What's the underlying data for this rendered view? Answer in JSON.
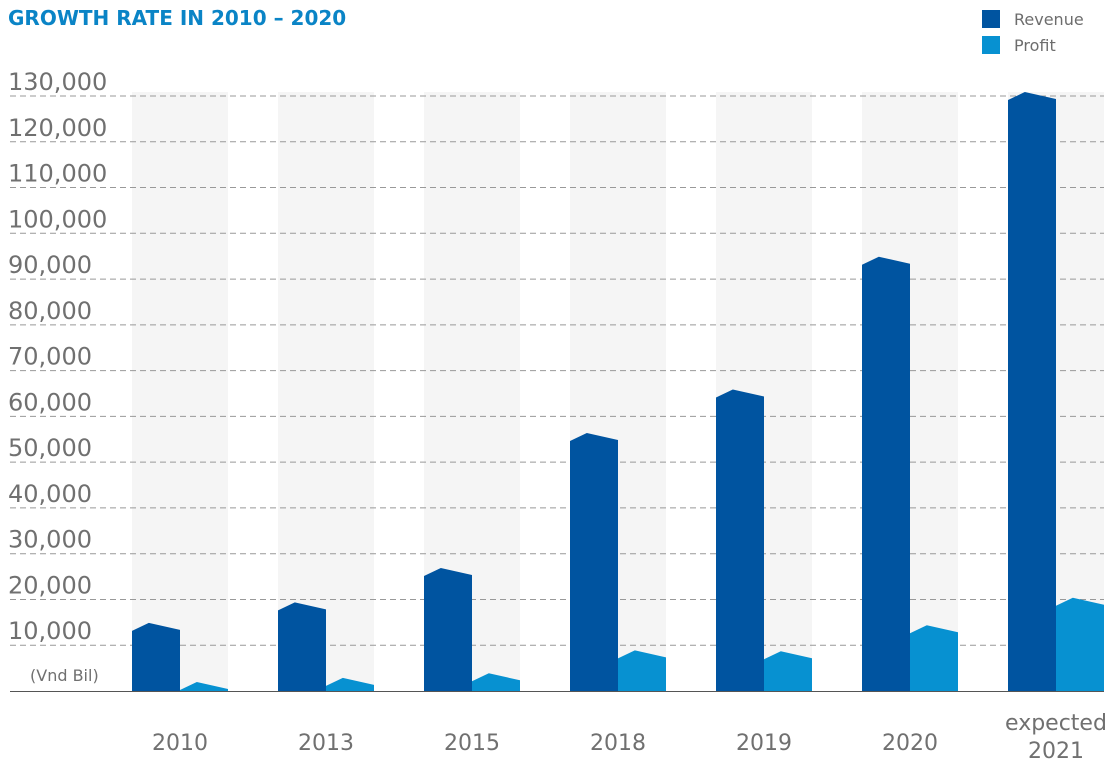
{
  "title": "GROWTH RATE IN 2010 – 2020",
  "unit_label": "(Vnd Bil)",
  "colors": {
    "revenue": "#0054a0",
    "profit": "#0791d1",
    "title": "#0a84c6",
    "axis_text": "#707070",
    "grid": "#999999",
    "column_band": "#f5f5f5"
  },
  "chart_data": {
    "type": "bar",
    "title": "GROWTH RATE IN 2010 – 2020",
    "xlabel": "",
    "ylabel": "(Vnd Bil)",
    "categories": [
      "2010",
      "2013",
      "2015",
      "2018",
      "2019",
      "2020",
      "expected 2021"
    ],
    "category_lines": [
      [
        "2010"
      ],
      [
        "2013"
      ],
      [
        "2015"
      ],
      [
        "2018"
      ],
      [
        "2019"
      ],
      [
        "2020"
      ],
      [
        "expected",
        "2021"
      ]
    ],
    "series": [
      {
        "name": "Revenue",
        "values": [
          14000,
          18500,
          26000,
          55500,
          65000,
          94000,
          130000
        ]
      },
      {
        "name": "Profit",
        "values": [
          1100,
          2000,
          3000,
          8000,
          7800,
          13500,
          19500
        ]
      }
    ],
    "ylim": [
      0,
      130000
    ],
    "yticks": [
      130000,
      120000,
      110000,
      100000,
      90000,
      80000,
      70000,
      60000,
      50000,
      40000,
      30000,
      20000,
      10000
    ],
    "ytick_labels": [
      "130,000",
      "120,000",
      "110,000",
      "100,000",
      "90,000",
      "80,000",
      "70,000",
      "60,000",
      "50,000",
      "40,000",
      "30,000",
      "20,000",
      "10,000"
    ],
    "grid": true,
    "legend_position": "top-right"
  }
}
